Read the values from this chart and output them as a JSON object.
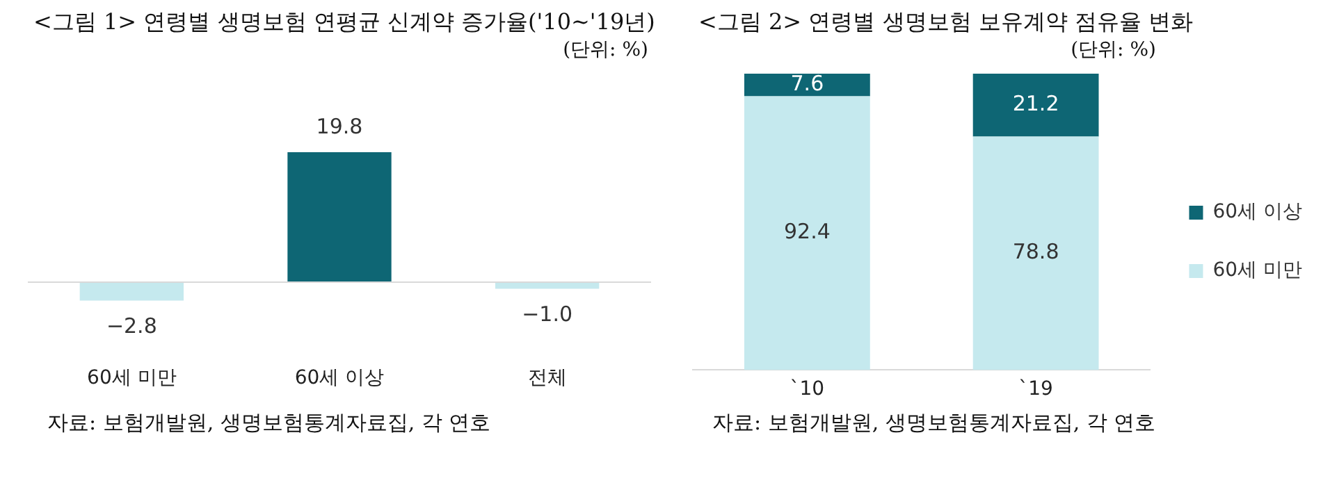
{
  "chart_data": [
    {
      "type": "bar",
      "title": "<그림 1> 연령별 생명보험 연평균 신계약 증가율('10~'19년)",
      "subtitle": "(단위: %)",
      "categories": [
        "60세 미만",
        "60세 이상",
        "전체"
      ],
      "values": [
        -2.8,
        19.8,
        -1.0
      ],
      "value_labels": [
        "−2.8",
        "19.8",
        "−1.0"
      ],
      "colors": [
        "#c5e9ee",
        "#0e6674",
        "#c5e9ee"
      ],
      "legend": false,
      "grid": false,
      "annotations": [
        "자료: 보험개발원, 생명보험통계자료집, 각 연호"
      ]
    },
    {
      "type": "bar",
      "title": "<그림 2> 연령별 생명보험 보유계약 점유율 변화",
      "subtitle": "(단위: %)",
      "categories": [
        "`10",
        "`19"
      ],
      "stacked": true,
      "series": [
        {
          "name": "60세 미만",
          "color": "#c5e9ee",
          "values": [
            92.4,
            78.8
          ]
        },
        {
          "name": "60세 이상",
          "color": "#0e6674",
          "values": [
            7.6,
            21.2
          ]
        }
      ],
      "data_labels": true,
      "legend": "right",
      "grid": false,
      "annotations": [
        "자료: 보험개발원, 생명보험통계자료집, 각 연호"
      ]
    }
  ]
}
